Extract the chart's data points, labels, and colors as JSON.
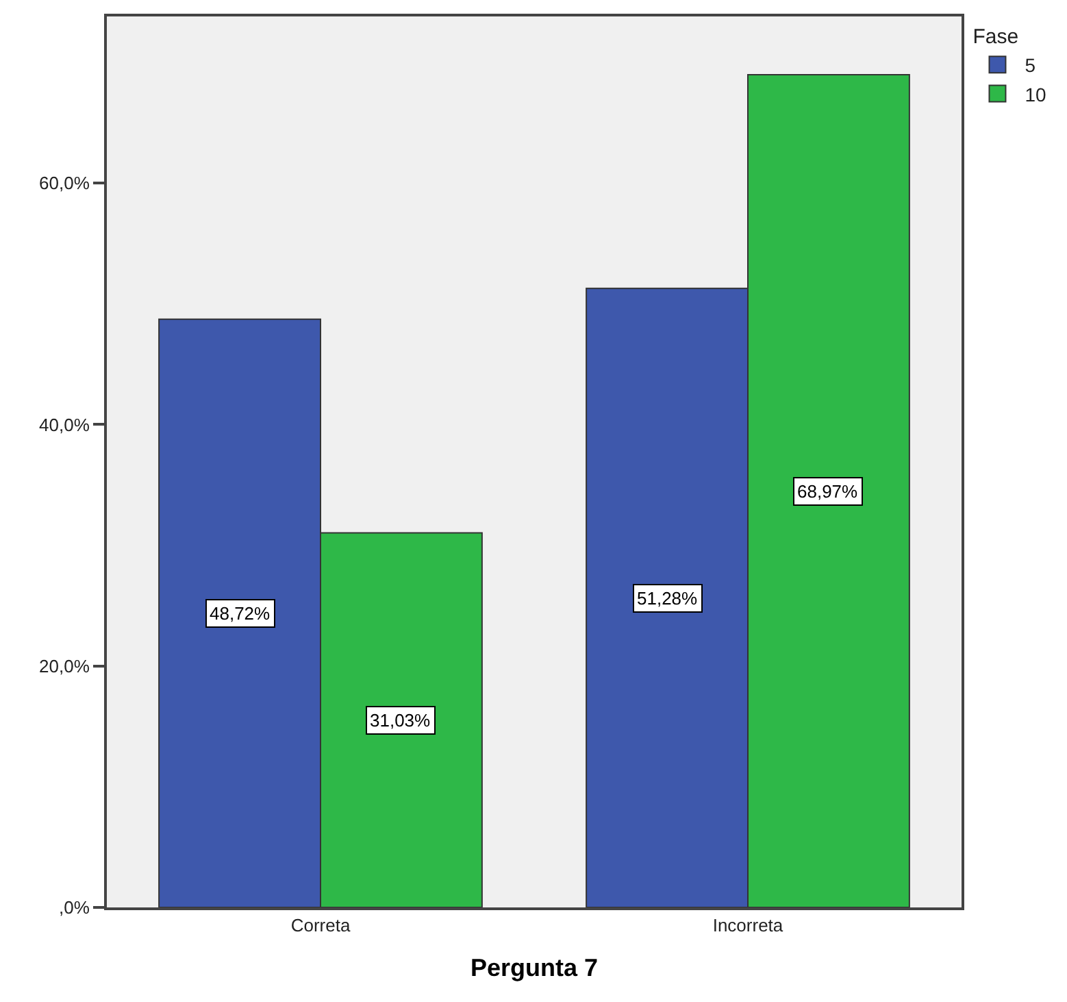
{
  "chart_data": {
    "type": "bar",
    "xlabel": "Pergunta 7",
    "legend_title": "Fase",
    "legend": "top right",
    "categories": [
      "Correta",
      "Incorreta"
    ],
    "series": [
      {
        "name": "5",
        "color": "#3e58ac",
        "values": [
          48.72,
          51.28
        ],
        "value_labels": [
          "48,72%",
          "51,28%"
        ]
      },
      {
        "name": "10",
        "color": "#2eb848",
        "values": [
          31.03,
          68.97
        ],
        "value_labels": [
          "31,03%",
          "68,97%"
        ]
      }
    ],
    "ylim": [
      0,
      73.8
    ],
    "yticks": [
      {
        "value": 0,
        "label": ",0%"
      },
      {
        "value": 20,
        "label": "20,0%"
      },
      {
        "value": 40,
        "label": "40,0%"
      },
      {
        "value": 60,
        "label": "60,0%"
      }
    ],
    "grid": false
  }
}
